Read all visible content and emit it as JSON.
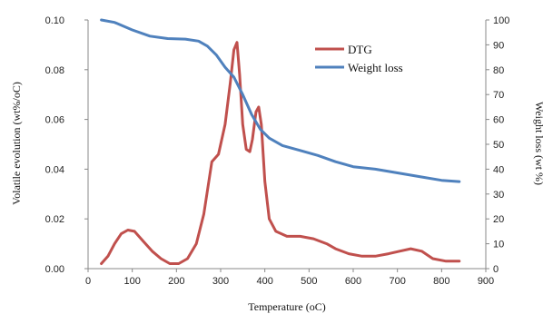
{
  "chart_data": {
    "type": "line",
    "xlabel": "Temperature (oC)",
    "ylabel_left": "Volatile evolution (wt%/oC)",
    "ylabel_right": "Weight loss (wt %)",
    "xlim": [
      0,
      900
    ],
    "ylim_left": [
      0,
      0.1
    ],
    "ylim_right": [
      0,
      100
    ],
    "x_ticks": [
      "0",
      "100",
      "200",
      "300",
      "400",
      "500",
      "600",
      "700",
      "800",
      "900"
    ],
    "y_left_ticks": [
      "0.00",
      "0.02",
      "0.04",
      "0.06",
      "0.08",
      "0.10"
    ],
    "y_right_ticks": [
      "0",
      "10",
      "20",
      "30",
      "40",
      "50",
      "60",
      "70",
      "80",
      "90",
      "100"
    ],
    "grid": false,
    "legend_position": "top-right",
    "series": [
      {
        "name": "DTG",
        "axis": "left",
        "color": "#c0504d",
        "points": [
          [
            30,
            0.002
          ],
          [
            45,
            0.005
          ],
          [
            60,
            0.01
          ],
          [
            75,
            0.014
          ],
          [
            90,
            0.0155
          ],
          [
            105,
            0.015
          ],
          [
            125,
            0.011
          ],
          [
            145,
            0.007
          ],
          [
            165,
            0.004
          ],
          [
            185,
            0.002
          ],
          [
            205,
            0.002
          ],
          [
            225,
            0.004
          ],
          [
            245,
            0.01
          ],
          [
            262,
            0.022
          ],
          [
            280,
            0.043
          ],
          [
            295,
            0.046
          ],
          [
            310,
            0.058
          ],
          [
            322,
            0.075
          ],
          [
            330,
            0.088
          ],
          [
            337,
            0.091
          ],
          [
            343,
            0.078
          ],
          [
            350,
            0.058
          ],
          [
            358,
            0.048
          ],
          [
            366,
            0.047
          ],
          [
            372,
            0.052
          ],
          [
            380,
            0.063
          ],
          [
            386,
            0.065
          ],
          [
            392,
            0.058
          ],
          [
            400,
            0.035
          ],
          [
            410,
            0.02
          ],
          [
            425,
            0.015
          ],
          [
            450,
            0.013
          ],
          [
            480,
            0.013
          ],
          [
            510,
            0.012
          ],
          [
            540,
            0.01
          ],
          [
            560,
            0.008
          ],
          [
            590,
            0.006
          ],
          [
            620,
            0.005
          ],
          [
            650,
            0.005
          ],
          [
            680,
            0.006
          ],
          [
            705,
            0.007
          ],
          [
            730,
            0.008
          ],
          [
            755,
            0.007
          ],
          [
            780,
            0.004
          ],
          [
            810,
            0.003
          ],
          [
            840,
            0.003
          ]
        ]
      },
      {
        "name": "Weight loss",
        "axis": "right",
        "color": "#4f81bd",
        "points": [
          [
            30,
            100
          ],
          [
            60,
            99
          ],
          [
            100,
            96
          ],
          [
            140,
            93.5
          ],
          [
            180,
            92.5
          ],
          [
            220,
            92.3
          ],
          [
            250,
            91.5
          ],
          [
            270,
            89.5
          ],
          [
            290,
            86
          ],
          [
            310,
            81
          ],
          [
            330,
            77
          ],
          [
            350,
            70
          ],
          [
            370,
            62
          ],
          [
            390,
            56
          ],
          [
            410,
            52.5
          ],
          [
            440,
            49.5
          ],
          [
            480,
            47.5
          ],
          [
            520,
            45.5
          ],
          [
            560,
            43
          ],
          [
            600,
            41
          ],
          [
            650,
            40
          ],
          [
            700,
            38.5
          ],
          [
            750,
            37
          ],
          [
            800,
            35.5
          ],
          [
            840,
            35
          ]
        ]
      }
    ]
  }
}
